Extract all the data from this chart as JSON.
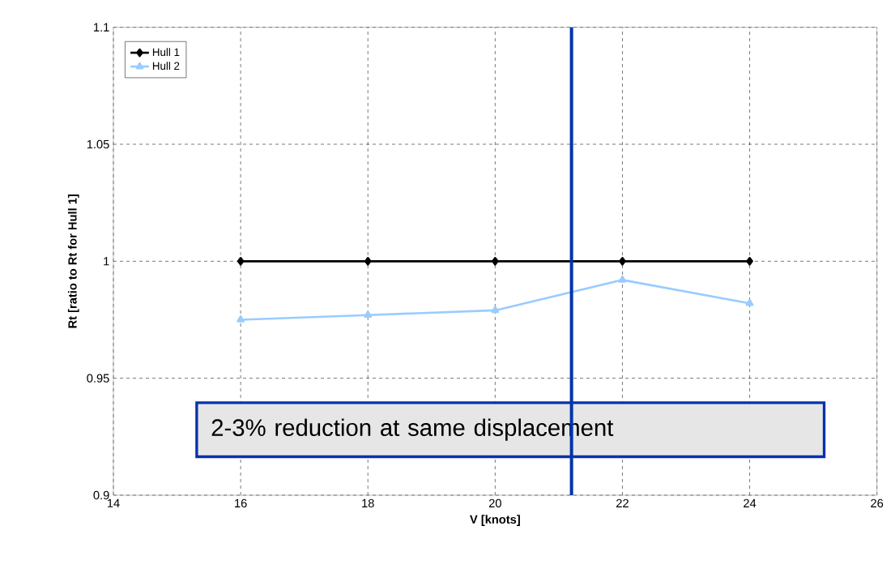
{
  "chart_data": {
    "type": "line",
    "xlabel": "V [knots]",
    "ylabel": "Rt [ratio to Rt for Hull 1]",
    "x": [
      16,
      18,
      20,
      22,
      24
    ],
    "series": [
      {
        "name": "Hull 1",
        "color": "#000000",
        "marker": "diamond",
        "values": [
          1,
          1,
          1,
          1,
          1
        ]
      },
      {
        "name": "Hull 2",
        "color": "#99ccff",
        "marker": "triangle",
        "values": [
          0.975,
          0.977,
          0.979,
          0.992,
          0.982
        ]
      }
    ],
    "xlim": [
      14,
      26
    ],
    "xticks": [
      14,
      16,
      18,
      20,
      22,
      24,
      26
    ],
    "ylim": [
      0.9,
      1.1
    ],
    "yticks": [
      0.9,
      0.95,
      1,
      1.05,
      1.1
    ],
    "ref_lines": [
      {
        "axis": "x",
        "value": 21.2,
        "color": "#0033aa"
      }
    ],
    "annotations": [
      "2-3% reduction at same displacement"
    ],
    "grid": true,
    "legend": "top left"
  }
}
